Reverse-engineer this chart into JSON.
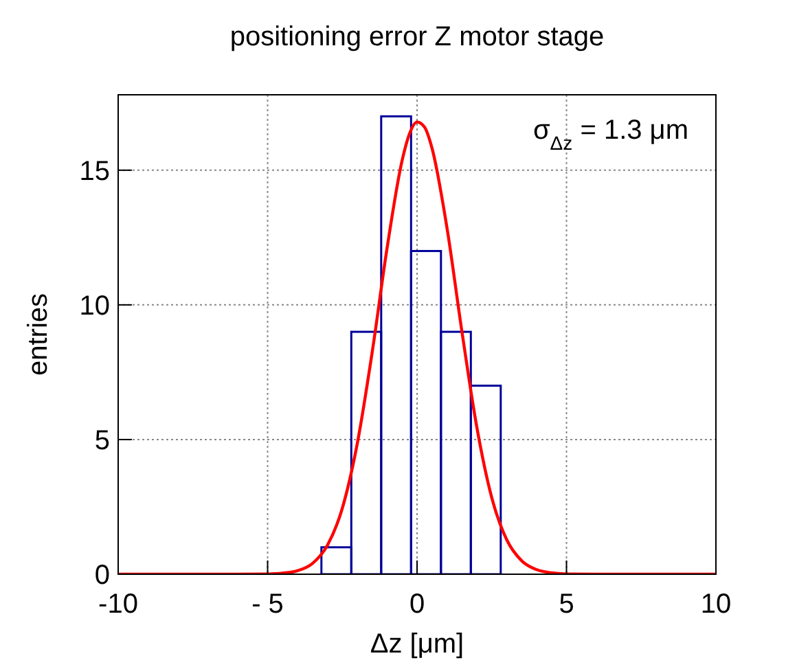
{
  "chart_data": {
    "type": "histogram",
    "title": "positioning error Z motor stage",
    "xlabel": "Δz [μm]",
    "ylabel": "entries",
    "series": [
      {
        "color": "#000099",
        "bins": [
          -3.2,
          -2.2,
          -1.2,
          -0.2,
          0.8,
          1.8,
          2.8
        ],
        "values": [
          1,
          9,
          17,
          12,
          9,
          7
        ]
      },
      {
        "type": "line",
        "color": "#ff0000",
        "x": [
          -10,
          -6,
          -5,
          -4.5,
          -4,
          -3.5,
          -3,
          -2.5,
          -2,
          -1.5,
          -1,
          -0.5,
          -0.25,
          0,
          0.25,
          0.5,
          1,
          1.5,
          2,
          2.5,
          3,
          3.5,
          4,
          4.5,
          5,
          6,
          10
        ],
        "values": [
          0,
          0,
          0.01,
          0.04,
          0.13,
          0.4,
          1.07,
          2.45,
          4.85,
          8.25,
          12.13,
          15.36,
          16.36,
          16.79,
          16.6,
          15.82,
          12.87,
          9.02,
          5.46,
          2.84,
          1.28,
          0.5,
          0.17,
          0.05,
          0.01,
          0,
          0
        ]
      }
    ],
    "xlim": [
      -10,
      10
    ],
    "xticks": [
      -10,
      {
        "value": -5,
        "label": "- 5"
      },
      0,
      5,
      10
    ],
    "ylim": [
      0,
      17.8
    ],
    "yticks": [
      0,
      5,
      10,
      15
    ],
    "grid": true,
    "annotations": [
      "σ$_{Δz}$ = 1.3 μm"
    ]
  }
}
